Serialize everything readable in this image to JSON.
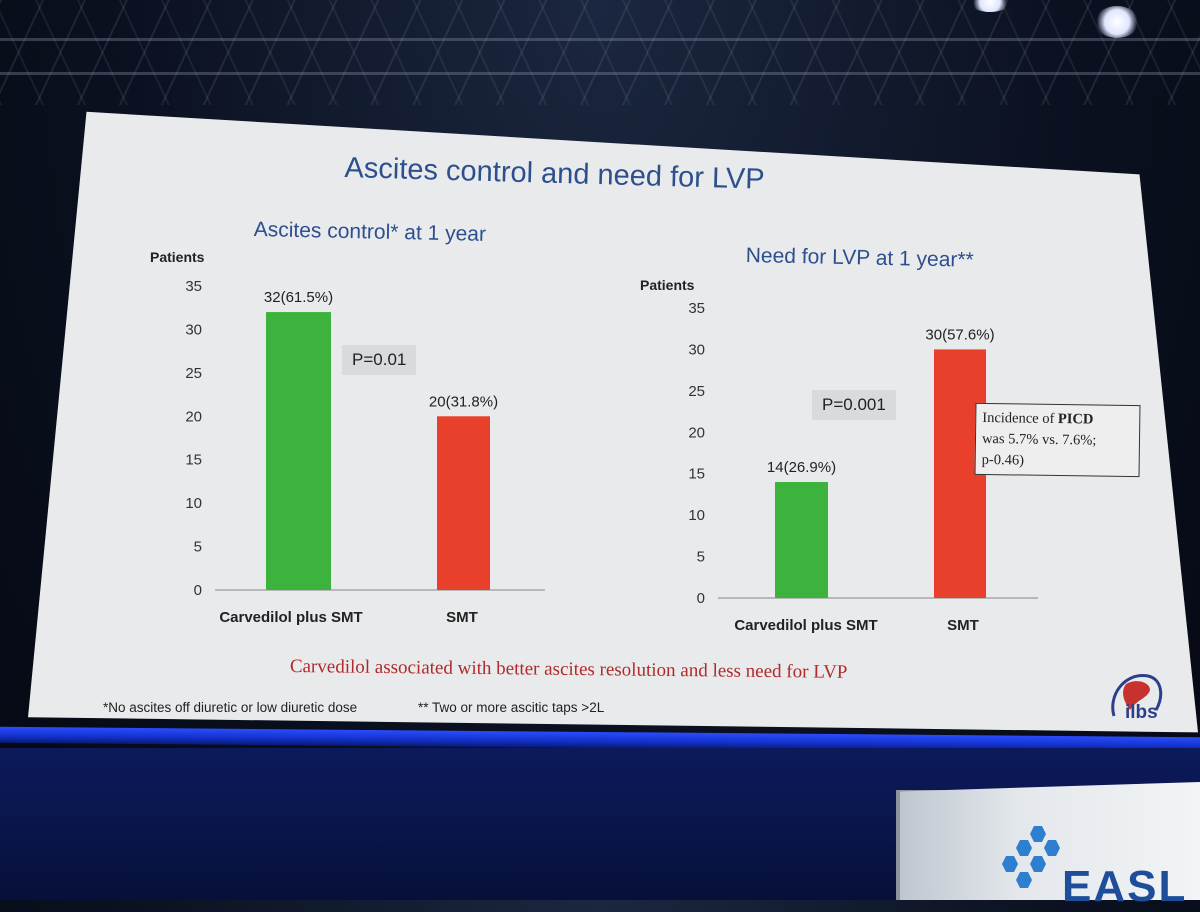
{
  "slide": {
    "title": "Ascites control and need for LVP",
    "conclusion": "Carvedilol associated with better ascites resolution and less need for LVP",
    "footnote_1": "*No ascites off diuretic or low diuretic dose",
    "footnote_2": "** Two or more ascitic taps >2L",
    "logo_text": "ilbs",
    "stage_logo_text": "EASL"
  },
  "note_box": {
    "line1_prefix": "Incidence of ",
    "line1_bold": "PICD",
    "line2": "was 5.7% vs. 7.6%;",
    "line3": "p-0.46)"
  },
  "colors": {
    "green": "#3cb33c",
    "red": "#e8402a",
    "title_blue": "#2d4f8e",
    "conclusion_red": "#b02a2a"
  },
  "chart_data": [
    {
      "type": "bar",
      "title": "Ascites control* at 1 year",
      "ylabel": "Patients",
      "xlabel": "",
      "ylim": [
        0,
        35
      ],
      "yticks": [
        0,
        5,
        10,
        15,
        20,
        25,
        30,
        35
      ],
      "categories": [
        "Carvedilol plus SMT",
        "SMT"
      ],
      "values": [
        32,
        20
      ],
      "data_labels": [
        "32(61.5%)",
        "20(31.8%)"
      ],
      "annotation": "P=0.01",
      "grid": false
    },
    {
      "type": "bar",
      "title": "Need for LVP at 1 year**",
      "ylabel": "Patients",
      "xlabel": "",
      "ylim": [
        0,
        35
      ],
      "yticks": [
        0,
        5,
        10,
        15,
        20,
        25,
        30,
        35
      ],
      "categories": [
        "Carvedilol plus SMT",
        "SMT"
      ],
      "values": [
        14,
        30
      ],
      "data_labels": [
        "14(26.9%)",
        "30(57.6%)"
      ],
      "annotation": "P=0.001",
      "grid": false
    }
  ]
}
